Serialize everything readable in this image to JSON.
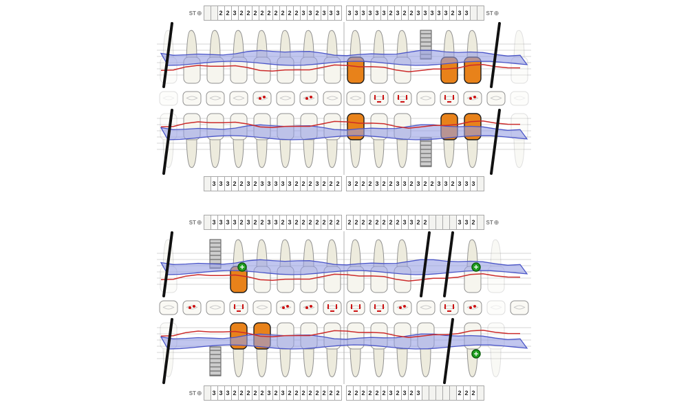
{
  "labels": {
    "st": "ST",
    "st_icon": "⊕"
  },
  "colors": {
    "tooth_fill": "#f6f5ee",
    "root_fill": "#edebdd",
    "tooth_stroke": "#8f8f8f",
    "crown_fill": "#e8821a",
    "crown_stroke": "#1a1a1a",
    "band_fill": "#98a0e4",
    "band_stroke": "#4a55c8",
    "margin_red": "#cc2a2a",
    "mark_red": "#cc1111",
    "implant_fill": "#cccccc",
    "implant_stroke": "#555555",
    "implant_thread": "#777777",
    "missing_black": "#111111",
    "dot_green": "#22a022",
    "dot_green_edge": "#0b5e0b",
    "grid_line": "#d5d5d5",
    "center_line": "#b0b0b0"
  },
  "charts": [
    {
      "name": "maxillary-chart",
      "st_top": {
        "left_label": true,
        "right_label": true,
        "cells": [
          "",
          "",
          "2",
          "2",
          "3",
          "2",
          "2",
          "2",
          "2",
          "2",
          "2",
          "2",
          "2",
          "2",
          "3",
          "3",
          "2",
          "3",
          "3",
          "3",
          "3",
          "3",
          "3",
          "3",
          "3",
          "3",
          "2",
          "3",
          "2",
          "2",
          "3",
          "3",
          "3",
          "3",
          "3",
          "2",
          "3",
          "3",
          "",
          ""
        ]
      },
      "rows": {
        "buccal": {
          "orientation": "up",
          "teeth": [
            {
              "s": "ghost",
              "line": true
            },
            {
              "s": "normal"
            },
            {
              "s": "normal"
            },
            {
              "s": "normal"
            },
            {
              "s": "normal"
            },
            {
              "s": "normal"
            },
            {
              "s": "normal"
            },
            {
              "s": "normal"
            },
            {
              "s": "crown"
            },
            {
              "s": "normal"
            },
            {
              "s": "normal"
            },
            {
              "s": "implant"
            },
            {
              "s": "crown"
            },
            {
              "s": "crown"
            },
            {
              "s": "none",
              "line": true
            },
            {
              "s": "ghost"
            }
          ]
        },
        "occlusal": {
          "squares": [
            {
              "g": 1
            },
            {},
            {},
            {},
            {
              "m": 1
            },
            {},
            {
              "m": 1
            },
            {},
            {},
            {
              "m": 2
            },
            {
              "m": 2
            },
            {},
            {
              "m": 2
            },
            {
              "m": 1
            },
            {},
            {
              "g": 1
            }
          ]
        },
        "lingual": {
          "orientation": "down",
          "teeth": [
            {
              "s": "ghost",
              "line": true
            },
            {
              "s": "normal"
            },
            {
              "s": "normal"
            },
            {
              "s": "normal"
            },
            {
              "s": "normal"
            },
            {
              "s": "normal"
            },
            {
              "s": "normal"
            },
            {
              "s": "normal"
            },
            {
              "s": "crown"
            },
            {
              "s": "normal"
            },
            {
              "s": "normal"
            },
            {
              "s": "implant"
            },
            {
              "s": "crown"
            },
            {
              "s": "crown"
            },
            {
              "s": "none",
              "line": true
            },
            {
              "s": "ghost"
            }
          ]
        }
      },
      "st_bottom": {
        "left_label": false,
        "right_label": false,
        "cells": [
          "",
          "3",
          "3",
          "3",
          "2",
          "2",
          "3",
          "2",
          "3",
          "3",
          "3",
          "3",
          "3",
          "2",
          "2",
          "2",
          "3",
          "2",
          "2",
          "2",
          "3",
          "2",
          "2",
          "2",
          "3",
          "2",
          "2",
          "3",
          "3",
          "2",
          "3",
          "2",
          "2",
          "3",
          "3",
          "2",
          "3",
          "3",
          "3",
          ""
        ]
      }
    },
    {
      "name": "mandibular-chart",
      "st_top": {
        "left_label": true,
        "right_label": true,
        "cells": [
          "",
          "3",
          "3",
          "3",
          "3",
          "2",
          "3",
          "2",
          "2",
          "3",
          "3",
          "2",
          "3",
          "2",
          "2",
          "2",
          "2",
          "2",
          "2",
          "2",
          "2",
          "2",
          "2",
          "2",
          "2",
          "2",
          "2",
          "2",
          "3",
          "3",
          "2",
          "2",
          "",
          "",
          "",
          "",
          "3",
          "3",
          "2",
          ""
        ]
      },
      "rows": {
        "buccal": {
          "orientation": "up",
          "teeth": [
            {
              "s": "ghost",
              "line": true
            },
            {
              "s": "none"
            },
            {
              "s": "implant"
            },
            {
              "s": "crown",
              "dot": true
            },
            {
              "s": "normal"
            },
            {
              "s": "normal"
            },
            {
              "s": "normal"
            },
            {
              "s": "normal"
            },
            {
              "s": "normal"
            },
            {
              "s": "normal"
            },
            {
              "s": "normal"
            },
            {
              "s": "none",
              "line": true
            },
            {
              "s": "none",
              "line": true
            },
            {
              "s": "normal",
              "dot": true
            },
            {
              "s": "ghost"
            },
            {
              "s": "none"
            }
          ]
        },
        "occlusal": {
          "squares": [
            {},
            {
              "m": 1
            },
            {},
            {
              "m": 2
            },
            {},
            {
              "m": 1
            },
            {
              "m": 1
            },
            {
              "m": 2
            },
            {
              "m": 2
            },
            {
              "m": 2
            },
            {
              "m": 1
            },
            {},
            {
              "m": 2
            },
            {
              "m": 1
            },
            {
              "g": 1
            },
            {}
          ]
        },
        "lingual": {
          "orientation": "down",
          "teeth": [
            {
              "s": "ghost",
              "line": true
            },
            {
              "s": "none"
            },
            {
              "s": "implant"
            },
            {
              "s": "crown"
            },
            {
              "s": "crown"
            },
            {
              "s": "normal"
            },
            {
              "s": "normal"
            },
            {
              "s": "normal"
            },
            {
              "s": "normal"
            },
            {
              "s": "normal"
            },
            {
              "s": "normal"
            },
            {
              "s": "normal"
            },
            {
              "s": "none",
              "line": true
            },
            {
              "s": "normal",
              "dot": true
            },
            {
              "s": "ghost"
            },
            {
              "s": "none"
            }
          ]
        }
      },
      "st_bottom": {
        "left_label": true,
        "right_label": false,
        "cells": [
          "",
          "3",
          "3",
          "3",
          "2",
          "2",
          "2",
          "2",
          "2",
          "3",
          "2",
          "3",
          "2",
          "2",
          "2",
          "2",
          "2",
          "2",
          "2",
          "2",
          "2",
          "2",
          "2",
          "2",
          "2",
          "2",
          "3",
          "2",
          "3",
          "2",
          "3",
          "",
          "",
          "",
          "",
          "",
          "2",
          "2",
          "2",
          ""
        ]
      }
    }
  ]
}
